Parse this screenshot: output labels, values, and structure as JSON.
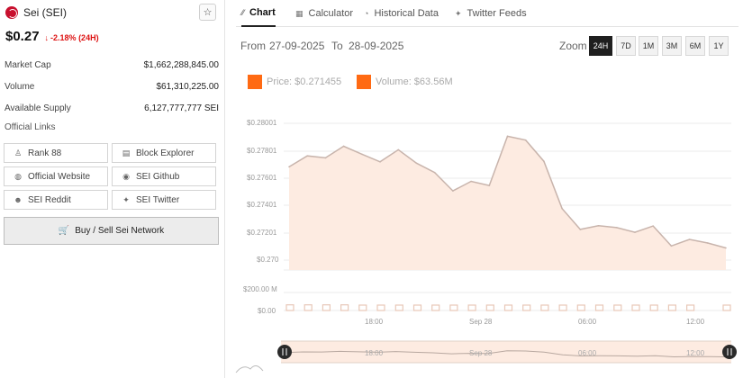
{
  "coin": {
    "name": "Sei (SEI)",
    "price": "$0.27",
    "change": "-2.18% (24H)",
    "change_arrow": "arrow-down-icon",
    "change_color": "#dd1111"
  },
  "stats": [
    {
      "label": "Market Cap",
      "value": "$1,662,288,845.00"
    },
    {
      "label": "Volume",
      "value": "$61,310,225.00"
    },
    {
      "label": "Available Supply",
      "value": "6,127,777,777 SEI"
    }
  ],
  "links": {
    "title": "Official Links",
    "items": [
      {
        "label": "Rank 88",
        "icon": "rank-icon"
      },
      {
        "label": "Block Explorer",
        "icon": "document-icon"
      },
      {
        "label": "Official Website",
        "icon": "globe-icon"
      },
      {
        "label": "SEI Github",
        "icon": "github-icon"
      },
      {
        "label": "SEI Reddit",
        "icon": "reddit-icon"
      },
      {
        "label": "SEI Twitter",
        "icon": "twitter-icon"
      }
    ]
  },
  "buy_button": {
    "label": "Buy / Sell Sei Network",
    "icon": "cart-icon"
  },
  "tabs": [
    {
      "label": "Chart",
      "icon": "chart-line-icon",
      "active": true
    },
    {
      "label": "Calculator",
      "icon": "calculator-icon",
      "active": false
    },
    {
      "label": "Historical Data",
      "icon": "clock-icon",
      "active": false
    },
    {
      "label": "Twitter Feeds",
      "icon": "twitter-icon",
      "active": false
    }
  ],
  "range": {
    "from_label": "From",
    "from_value": "27-09-2025",
    "to_label": "To",
    "to_value": "28-09-2025"
  },
  "zoom": {
    "label": "Zoom",
    "options": [
      "24H",
      "7D",
      "1M",
      "3M",
      "6M",
      "1Y"
    ],
    "active": "24H"
  },
  "legend": {
    "price": "Price: $0.271455",
    "volume": "Volume: $63.56M",
    "swatch_color": "#ff6a13"
  },
  "chart_data": {
    "type": "area",
    "price_axis": {
      "ticks": [
        "$0.28001",
        "$0.27801",
        "$0.27601",
        "$0.27401",
        "$0.27201",
        "$0.270"
      ],
      "ylim": [
        0.2697,
        0.28001
      ]
    },
    "volume_axis": {
      "ticks": [
        "$200.00 M",
        "$0.00"
      ]
    },
    "x_ticks": [
      "18:00",
      "Sep 28",
      "06:00",
      "12:00"
    ],
    "series": [
      {
        "type": "area",
        "x_hours": [
          0,
          1,
          2,
          3,
          4,
          5,
          6,
          7,
          8,
          9,
          10,
          11,
          12,
          13,
          14,
          15,
          16,
          17,
          18,
          19,
          20,
          21,
          22,
          23,
          24
        ],
        "values": [
          0.27695,
          0.27772,
          0.27758,
          0.2784,
          0.27784,
          0.2773,
          0.27815,
          0.27721,
          0.27655,
          0.27526,
          0.27593,
          0.27564,
          0.2791,
          0.27883,
          0.27734,
          0.27402,
          0.27255,
          0.27281,
          0.27268,
          0.27235,
          0.27279,
          0.27139,
          0.27185,
          0.2716,
          0.27125
        ],
        "color": "#ff6a13"
      },
      {
        "type": "bar",
        "values_musd": [
          63,
          63,
          63,
          63,
          52,
          52,
          52,
          52,
          52,
          52,
          52,
          52,
          52,
          52,
          52,
          52,
          52,
          52,
          52,
          52,
          52,
          52,
          52,
          0,
          52
        ],
        "color": "#e8c8b8"
      }
    ],
    "navigator_ticks": [
      "18:00",
      "Sep 28",
      "06:00",
      "12:00"
    ]
  }
}
